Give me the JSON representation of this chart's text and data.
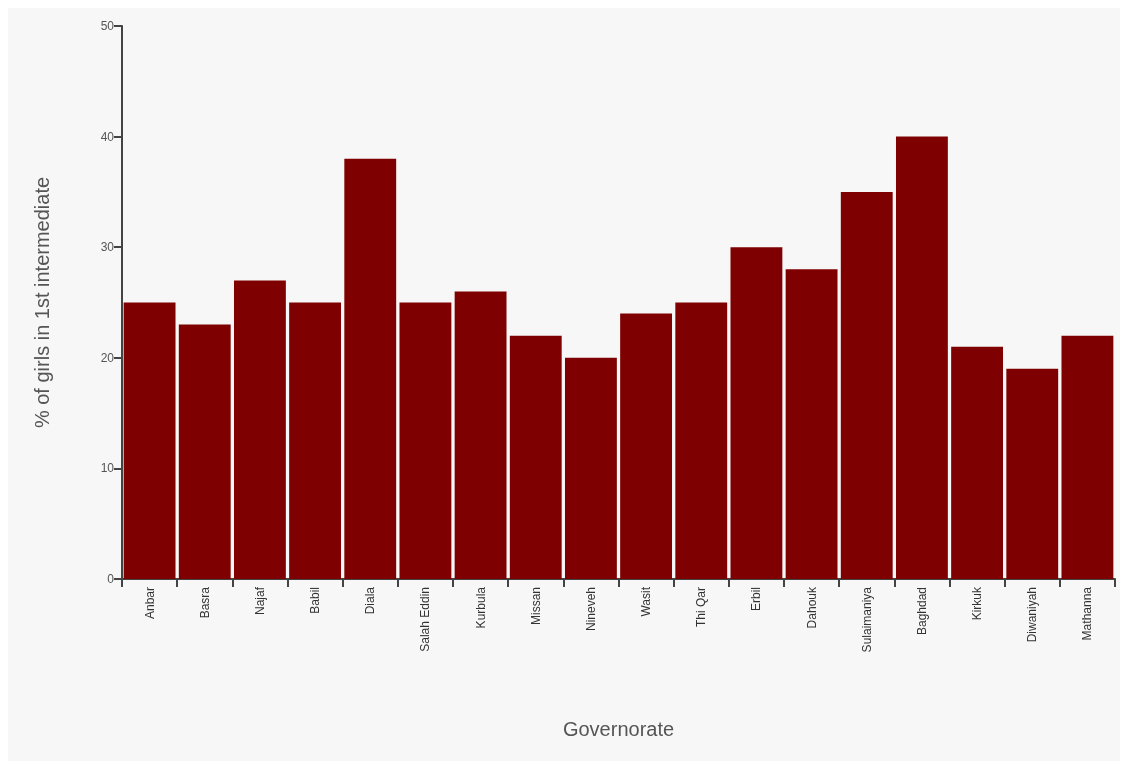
{
  "chart_data": {
    "type": "bar",
    "xlabel": "Governorate",
    "ylabel": "% of girls in 1st intermediate",
    "categories": [
      "Anbar",
      "Basra",
      "Najaf",
      "Babil",
      "Diala",
      "Salah Eddin",
      "Kurbula",
      "Missan",
      "Nineveh",
      "Wasit",
      "Thi Qar",
      "Erbil",
      "Dahouk",
      "Sulaimaniya",
      "Baghdad",
      "Kirkuk",
      "Diwaniyah",
      "Mathanna"
    ],
    "values": [
      25,
      23,
      27,
      25,
      38,
      25,
      26,
      22,
      20,
      24,
      25,
      30,
      28,
      35,
      40,
      21,
      19,
      22
    ],
    "color": "#7f0000",
    "ylim": [
      0,
      50
    ],
    "yticks": [
      0,
      10,
      20,
      30,
      40,
      50
    ],
    "grid": false
  }
}
